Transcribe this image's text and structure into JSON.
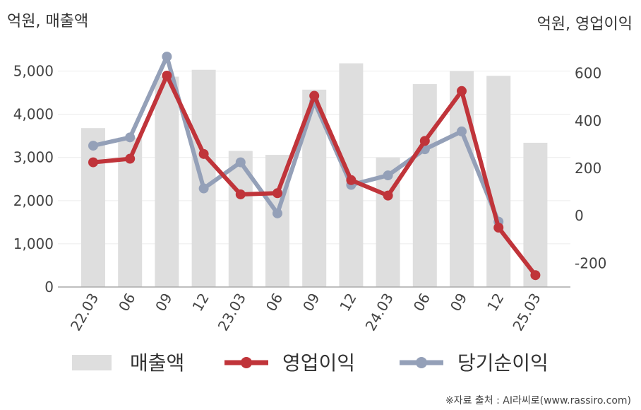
{
  "chart_data": {
    "type": "bar+line",
    "left_axis_label": "억원, 매출액",
    "right_axis_label": "억원, 영업이익",
    "categories": [
      "22.03",
      "06",
      "09",
      "12",
      "23.03",
      "06",
      "09",
      "12",
      "24.03",
      "06",
      "09",
      "12",
      "25.03"
    ],
    "left_ylim": [
      0,
      5500
    ],
    "left_ticks": [
      "0",
      "1,000",
      "2,000",
      "3,000",
      "4,000",
      "5,000"
    ],
    "left_tick_values": [
      0,
      1000,
      2000,
      3000,
      4000,
      5000
    ],
    "right_ylim": [
      -300,
      700
    ],
    "right_ticks": [
      "-200",
      "0",
      "200",
      "400",
      "600"
    ],
    "right_tick_values": [
      -200,
      0,
      200,
      400,
      600
    ],
    "series": [
      {
        "name": "매출액",
        "kind": "bar",
        "axis": "left",
        "color": "#dedede",
        "values": [
          3680,
          3460,
          4870,
          5030,
          3150,
          3060,
          4570,
          5180,
          3000,
          4700,
          5000,
          4890,
          3340
        ]
      },
      {
        "name": "영업이익",
        "kind": "line",
        "axis": "right",
        "color": "#c0343a",
        "values": [
          225,
          240,
          590,
          260,
          90,
          95,
          505,
          150,
          85,
          315,
          525,
          -50,
          -250
        ]
      },
      {
        "name": "당기순이익",
        "kind": "line",
        "axis": "right",
        "color": "#94a0b8",
        "values": [
          295,
          330,
          670,
          115,
          225,
          10,
          480,
          130,
          170,
          280,
          355,
          -25,
          null
        ]
      }
    ],
    "grid": true,
    "legend": "bottom"
  },
  "source_text": "※자료 출처 : AI라씨로(www.rassiro.com)"
}
